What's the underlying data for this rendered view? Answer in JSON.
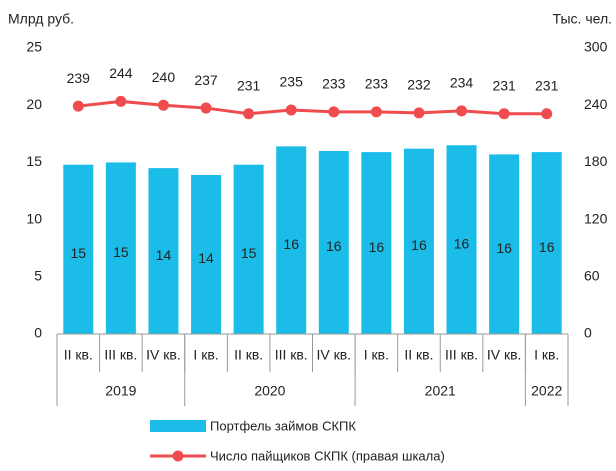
{
  "chart_data": {
    "type": "bar_line",
    "y_label": "Млрд руб.",
    "y2_label": "Тыс. чел.",
    "categories": [
      "II кв.",
      "III кв.",
      "IV кв.",
      "I кв.",
      "II кв.",
      "III кв.",
      "IV кв.",
      "I кв.",
      "II кв.",
      "III кв.",
      "IV кв.",
      "I кв."
    ],
    "groups": [
      {
        "label": "2019",
        "span": 3
      },
      {
        "label": "2020",
        "span": 4
      },
      {
        "label": "2021",
        "span": 4
      },
      {
        "label": "2022",
        "span": 1
      }
    ],
    "series": [
      {
        "name": "Портфель займов СКПК",
        "type": "bar",
        "color": "#1bbde8",
        "values": [
          14.8,
          15.0,
          14.5,
          13.9,
          14.8,
          16.4,
          16.0,
          15.9,
          16.2,
          16.5,
          15.7,
          15.9
        ],
        "value_labels": [
          "15",
          "15",
          "14",
          "14",
          "15",
          "16",
          "16",
          "16",
          "16",
          "16",
          "16",
          "16"
        ]
      },
      {
        "name": "Число пайщиков СКПК (правая шкала)",
        "type": "line",
        "color": "#f04b4f",
        "axis": "y2",
        "values": [
          239,
          244,
          240,
          237,
          231,
          235,
          233,
          233,
          232,
          234,
          231,
          231
        ]
      }
    ],
    "ylim": [
      0,
      25
    ],
    "yticks": [
      0,
      5,
      10,
      15,
      20,
      25
    ],
    "y2lim": [
      0,
      300
    ],
    "y2ticks": [
      0,
      60,
      120,
      180,
      240,
      300
    ]
  }
}
